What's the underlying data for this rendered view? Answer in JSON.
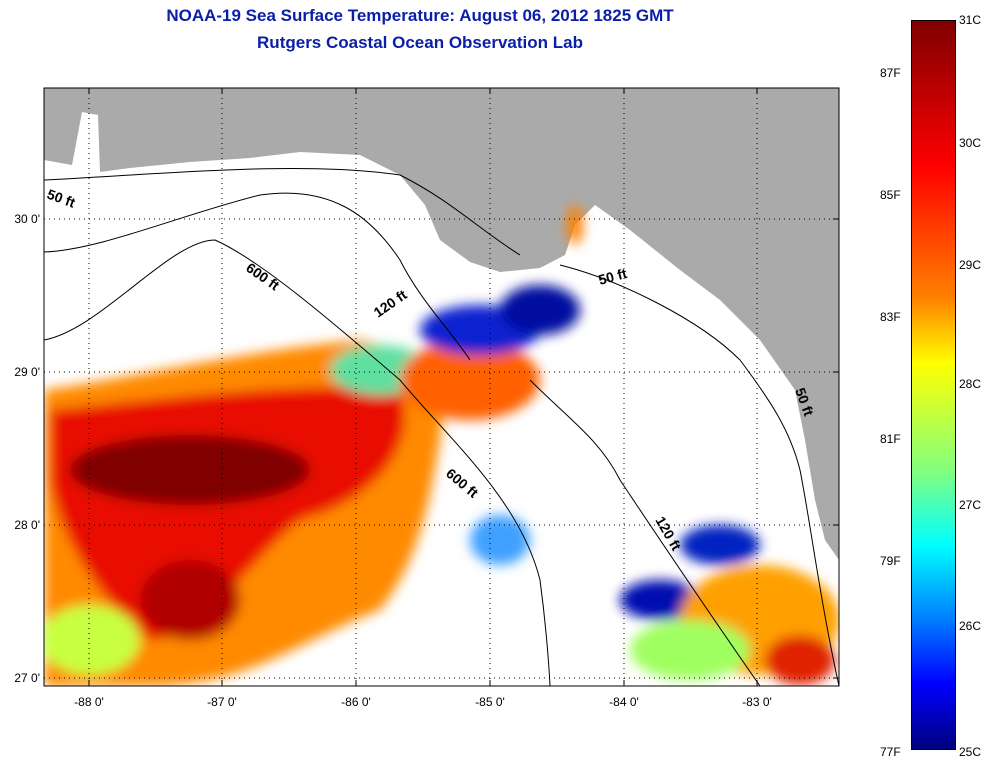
{
  "title": {
    "line1": "NOAA-19 Sea Surface Temperature:  August 06, 2012 1825 GMT",
    "line2": "Rutgers Coastal Ocean Observation Lab"
  },
  "axes": {
    "longitude_ticks": [
      "-88 0'",
      "-87 0'",
      "-86 0'",
      "-85 0'",
      "-84 0'",
      "-83 0'"
    ],
    "latitude_ticks": [
      "30 0'",
      "29 0'",
      "28 0'",
      "27 0'"
    ]
  },
  "contour_labels": [
    "50 ft",
    "600 ft",
    "120 ft",
    "50 ft",
    "600 ft",
    "120 ft",
    "50 ft"
  ],
  "colorbar": {
    "celsius": [
      "31C",
      "30C",
      "29C",
      "28C",
      "27C",
      "26C",
      "25C"
    ],
    "fahrenheit": [
      "87F",
      "85F",
      "83F",
      "81F",
      "79F",
      "77F"
    ],
    "range_c": [
      25,
      31
    ]
  },
  "colors": {
    "land": "#aaaaaa",
    "title": "#0a1fa8"
  }
}
